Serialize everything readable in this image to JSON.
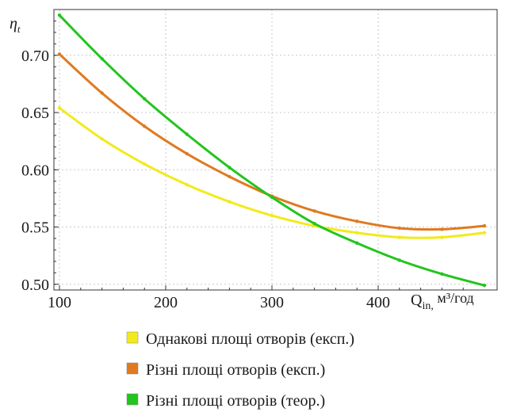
{
  "chart_data": {
    "type": "line",
    "ylabel": "η",
    "ylabel_sub": "t",
    "xlabel": "Q",
    "xlabel_sub": "in,",
    "xlabel_unit": " м³/год",
    "xlim": [
      100,
      410
    ],
    "ylim": [
      0.495,
      0.74
    ],
    "x_ticks": [
      100,
      200,
      300,
      400
    ],
    "x_tick_labels": [
      "100",
      "200",
      "300",
      "400"
    ],
    "y_ticks": [
      0.5,
      0.55,
      0.6,
      0.65,
      0.7
    ],
    "y_tick_labels": [
      "0.50",
      "0.55",
      "0.60",
      "0.65",
      "0.70"
    ],
    "grid": true,
    "legend_position": "bottom",
    "series": [
      {
        "name": "Однакові площі отворів (експ.)",
        "color": "#f2ea1c",
        "x": [
          100,
          140,
          180,
          220,
          260,
          300,
          340,
          380,
          420,
          460,
          500
        ],
        "y": [
          0.654,
          0.627,
          0.605,
          0.587,
          0.572,
          0.56,
          0.551,
          0.545,
          0.541,
          0.541,
          0.545
        ]
      },
      {
        "name": "Різні площі отворів (експ.)",
        "color": "#e07a20",
        "x": [
          100,
          140,
          180,
          220,
          260,
          300,
          340,
          380,
          420,
          460,
          500
        ],
        "y": [
          0.701,
          0.667,
          0.638,
          0.614,
          0.594,
          0.577,
          0.564,
          0.555,
          0.549,
          0.548,
          0.551
        ]
      },
      {
        "name": "Різні площі отворів (теор.)",
        "color": "#22c51e",
        "x": [
          100,
          140,
          180,
          220,
          260,
          300,
          340,
          380,
          420,
          460,
          500
        ],
        "y": [
          0.735,
          0.697,
          0.662,
          0.631,
          0.602,
          0.576,
          0.553,
          0.536,
          0.521,
          0.509,
          0.499
        ]
      }
    ]
  }
}
